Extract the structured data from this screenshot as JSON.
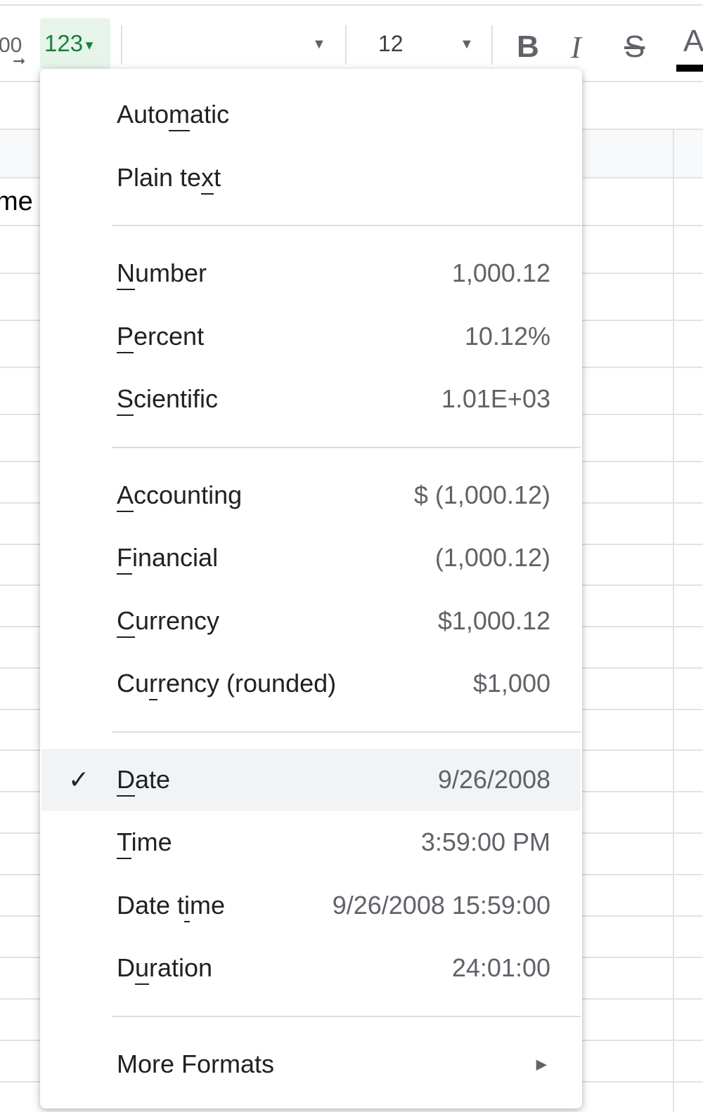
{
  "toolbar": {
    "decimal_label": "00",
    "format_button_label": "123",
    "font_size": "12",
    "bold": "B",
    "italic": "I",
    "strikethrough": "S",
    "text_color": "A"
  },
  "sheet": {
    "partial_cell_text": "me"
  },
  "menu": {
    "groups": [
      [
        {
          "label": "Automatic",
          "mnemonic": 4
        },
        {
          "label": "Plain text",
          "mnemonic": 8
        }
      ],
      [
        {
          "label": "Number",
          "mnemonic": 0,
          "example": "1,000.12"
        },
        {
          "label": "Percent",
          "mnemonic": 0,
          "example": "10.12%"
        },
        {
          "label": "Scientific",
          "mnemonic": 0,
          "example": "1.01E+03"
        }
      ],
      [
        {
          "label": "Accounting",
          "mnemonic": 0,
          "example": "$ (1,000.12)"
        },
        {
          "label": "Financial",
          "mnemonic": 0,
          "example": "(1,000.12)"
        },
        {
          "label": "Currency",
          "mnemonic": 0,
          "example": "$1,000.12"
        },
        {
          "label": "Currency (rounded)",
          "mnemonic": 2,
          "example": "$1,000"
        }
      ],
      [
        {
          "label": "Date",
          "mnemonic": 0,
          "example": "9/26/2008",
          "selected": true
        },
        {
          "label": "Time",
          "mnemonic": 0,
          "example": "3:59:00 PM"
        },
        {
          "label": "Date time",
          "mnemonic": 6,
          "example": "9/26/2008 15:59:00"
        },
        {
          "label": "Duration",
          "mnemonic": 1,
          "example": "24:01:00"
        }
      ],
      [
        {
          "label": "More Formats",
          "submenu": true
        }
      ]
    ]
  },
  "colors": {
    "accent_green": "#188038",
    "format_button_bg": "#e6f4ea",
    "selected_bg": "#f1f3f4"
  }
}
